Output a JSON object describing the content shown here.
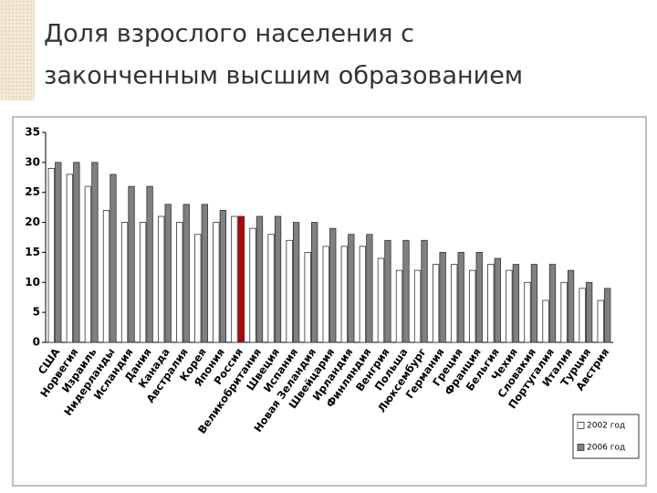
{
  "chart_data": {
    "type": "bar",
    "title_lines": [
      "Доля взрослого населения с",
      "законченным высшим образованием"
    ],
    "categories": [
      "США",
      "Норвегия",
      "Израиль",
      "Нидерланды",
      "Исландия",
      "Дания",
      "Канада",
      "Австралия",
      "Корея",
      "Япония",
      "Россия",
      "Великобритания",
      "Швеция",
      "Испания",
      "Новая Зеландия",
      "Швейцария",
      "Ирландия",
      "Финляндия",
      "Венгрия",
      "Польша",
      "Люксембург",
      "Германия",
      "Греция",
      "Франция",
      "Бельгия",
      "Чехия",
      "Словакия",
      "Португалия",
      "Италия",
      "Турция",
      "Австрия"
    ],
    "series": [
      {
        "name": "2002 год",
        "color": "#ffffff",
        "values": [
          29,
          28,
          26,
          22,
          20,
          20,
          21,
          20,
          18,
          20,
          21,
          19,
          18,
          17,
          15,
          16,
          16,
          16,
          14,
          12,
          12,
          13,
          13,
          12,
          13,
          12,
          10,
          7,
          10,
          9,
          7
        ]
      },
      {
        "name": "2006 год",
        "color": "#808080",
        "colors": [
          "#808080",
          "#808080",
          "#808080",
          "#808080",
          "#808080",
          "#808080",
          "#808080",
          "#808080",
          "#808080",
          "#808080",
          "#c00000",
          "#808080",
          "#808080",
          "#808080",
          "#808080",
          "#808080",
          "#808080",
          "#808080",
          "#808080",
          "#808080",
          "#808080",
          "#808080",
          "#808080",
          "#808080",
          "#808080",
          "#808080",
          "#808080",
          "#808080",
          "#808080",
          "#808080",
          "#808080"
        ],
        "values": [
          30,
          30,
          30,
          28,
          26,
          26,
          23,
          23,
          23,
          22,
          21,
          21,
          21,
          20,
          20,
          19,
          18,
          18,
          17,
          17,
          17,
          15,
          15,
          15,
          14,
          13,
          13,
          13,
          12,
          10,
          9
        ]
      }
    ],
    "ylim": [
      0,
      35
    ],
    "yticks": [
      0,
      5,
      10,
      15,
      20,
      25,
      30,
      35
    ],
    "grid": false,
    "legend": "bottom-right"
  }
}
